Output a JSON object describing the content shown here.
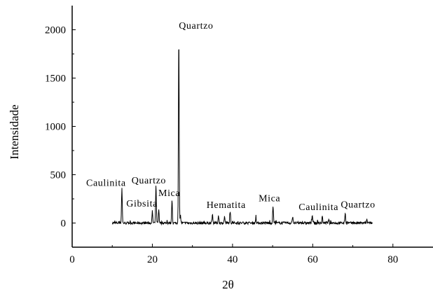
{
  "chart_data": {
    "type": "line",
    "title": "",
    "xlabel": "2θ",
    "ylabel": "Intensidade",
    "xlim": [
      0,
      90
    ],
    "ylim": [
      -250,
      2250
    ],
    "x_ticks": [
      0,
      20,
      40,
      60,
      80
    ],
    "y_ticks": [
      0,
      500,
      1000,
      1500,
      2000
    ],
    "x_tick_labels": [
      "0",
      "20",
      "40",
      "60",
      "80"
    ],
    "y_tick_labels": [
      "0",
      "500",
      "1000",
      "1500",
      "2000"
    ],
    "grid": false,
    "legend": "none",
    "line_color": "#000000",
    "baseline_range": [
      10,
      75
    ],
    "peaks": [
      {
        "x": 12.4,
        "y": 370
      },
      {
        "x": 20.0,
        "y": 120
      },
      {
        "x": 20.9,
        "y": 400
      },
      {
        "x": 21.6,
        "y": 130
      },
      {
        "x": 24.9,
        "y": 250
      },
      {
        "x": 26.6,
        "y": 1980
      },
      {
        "x": 27.0,
        "y": 80
      },
      {
        "x": 35.0,
        "y": 90
      },
      {
        "x": 36.5,
        "y": 80
      },
      {
        "x": 38.0,
        "y": 70
      },
      {
        "x": 39.4,
        "y": 110
      },
      {
        "x": 45.8,
        "y": 50
      },
      {
        "x": 50.1,
        "y": 180
      },
      {
        "x": 55.0,
        "y": 70
      },
      {
        "x": 59.9,
        "y": 90
      },
      {
        "x": 62.4,
        "y": 70
      },
      {
        "x": 64.0,
        "y": 40
      },
      {
        "x": 68.1,
        "y": 110
      },
      {
        "x": 73.5,
        "y": 30
      }
    ],
    "annotations": [
      {
        "text": "Quartzo",
        "x": 26.6,
        "y": 2010
      },
      {
        "text": "Caulinita",
        "x": 3.5,
        "y": 385
      },
      {
        "text": "Quartzo",
        "x": 14.8,
        "y": 410
      },
      {
        "text": "Gibsita",
        "x": 13.5,
        "y": 170
      },
      {
        "text": "Mica",
        "x": 21.5,
        "y": 280
      },
      {
        "text": "Hematita",
        "x": 33.5,
        "y": 155
      },
      {
        "text": "Mica",
        "x": 46.5,
        "y": 225
      },
      {
        "text": "Caulinita",
        "x": 56.5,
        "y": 135
      },
      {
        "text": "Quartzo",
        "x": 67.0,
        "y": 160
      }
    ]
  }
}
